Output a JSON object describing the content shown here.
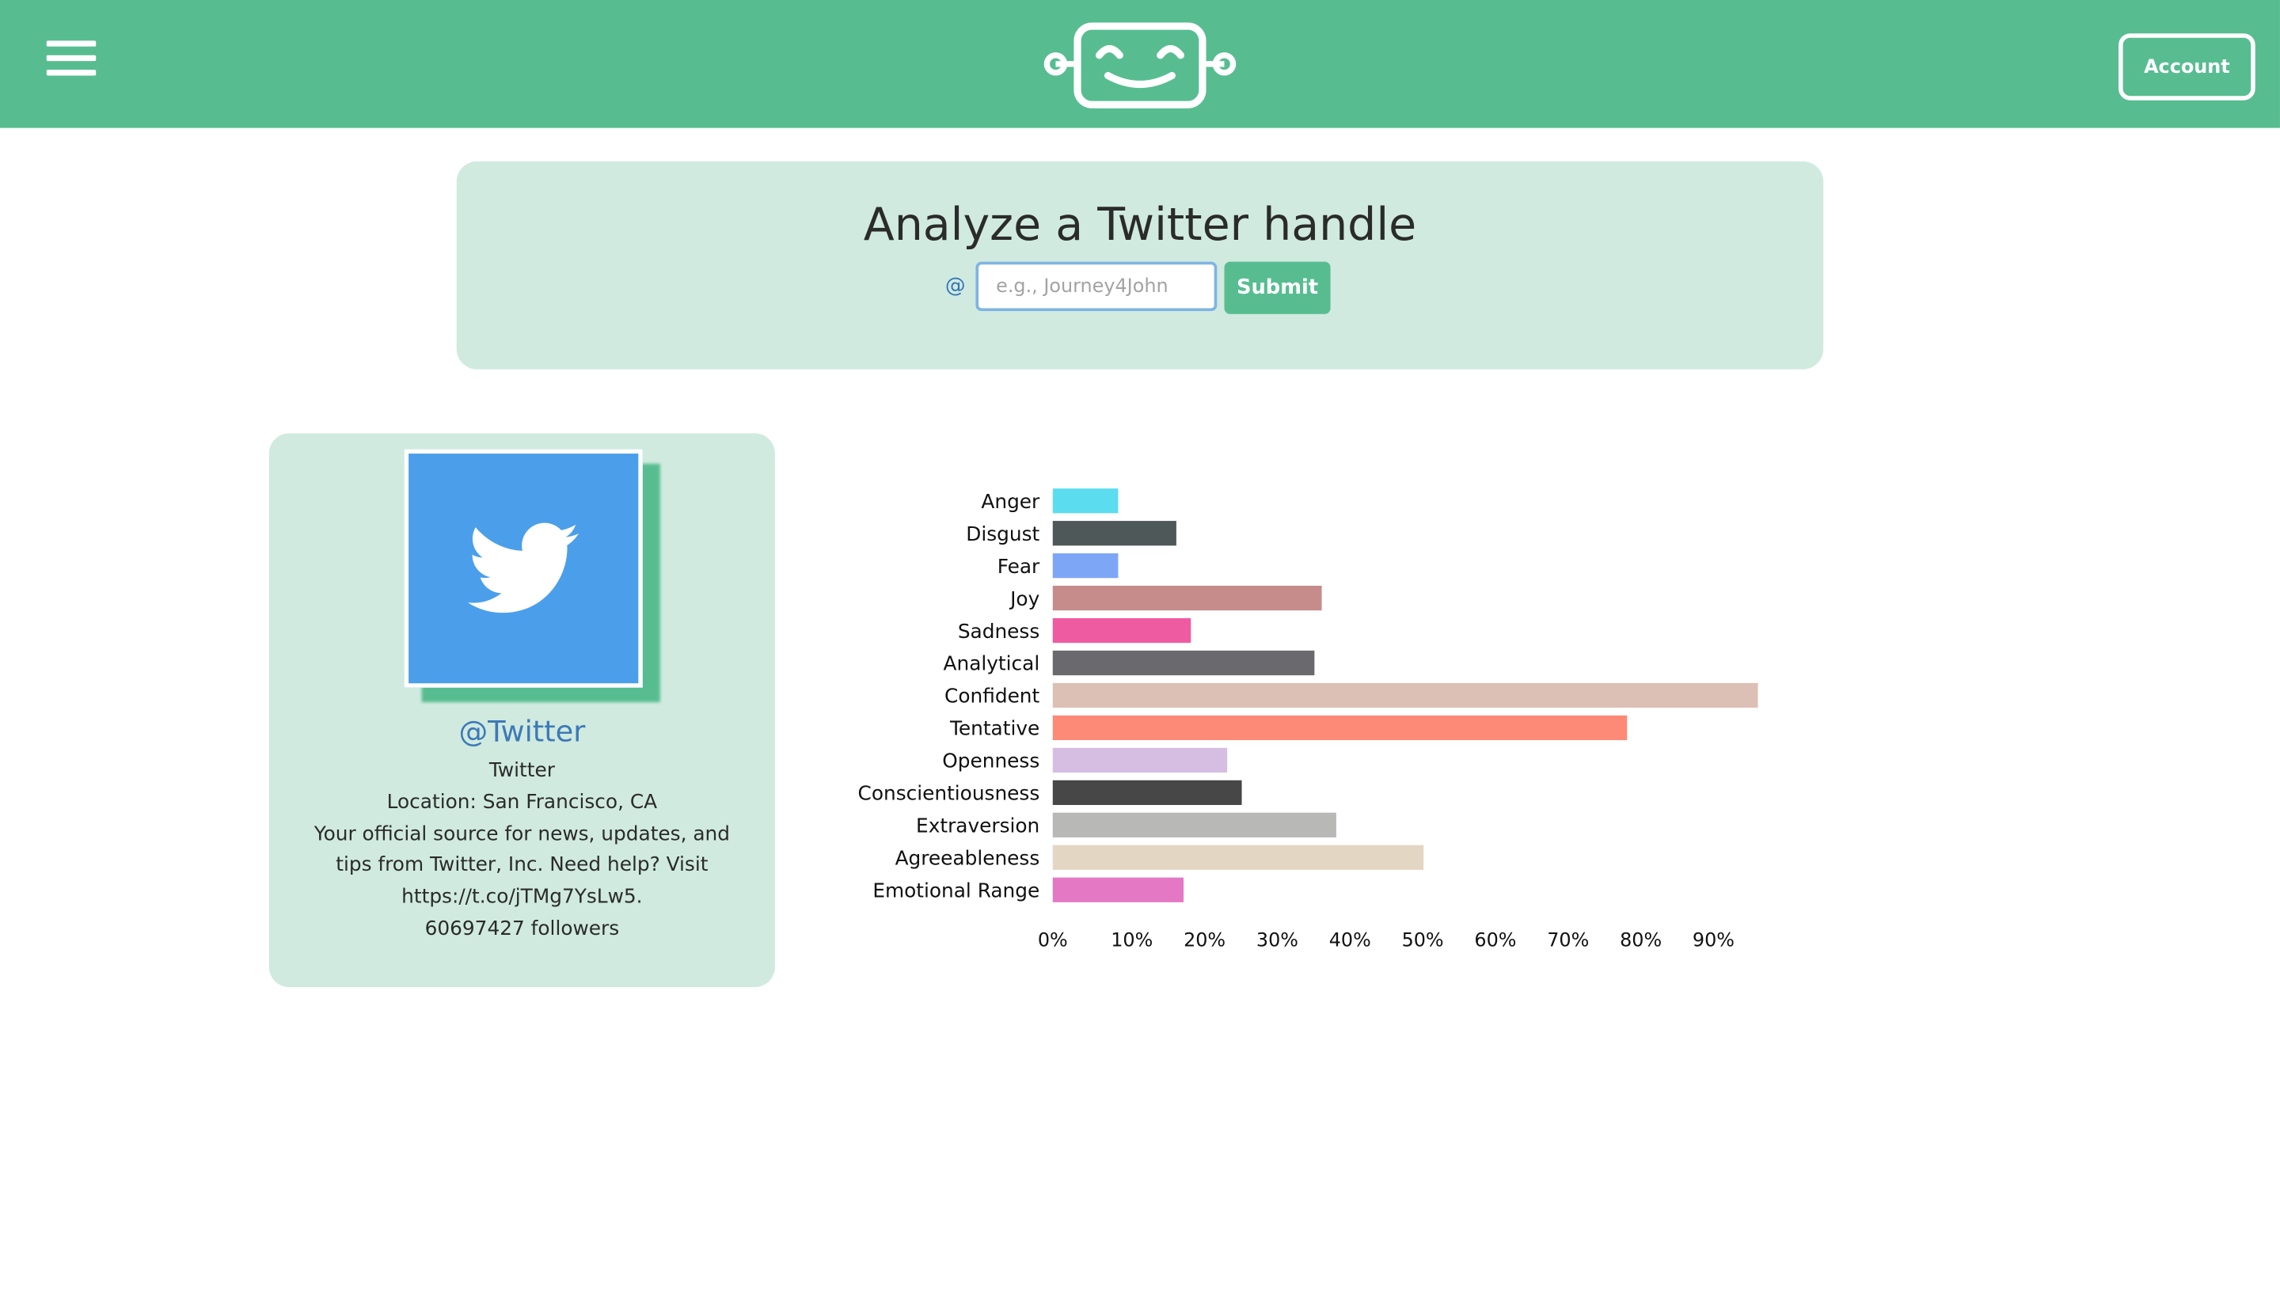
{
  "header": {
    "menu_icon": "hamburger-menu-icon",
    "logo_icon": "smiling-robot-logo",
    "account_label": "Account"
  },
  "search": {
    "title": "Analyze a Twitter handle",
    "at": "@",
    "placeholder": "e.g., Journey4John",
    "value": "",
    "submit_label": "Submit"
  },
  "profile": {
    "avatar_icon": "twitter-bird-icon",
    "handle": "@Twitter",
    "name": "Twitter",
    "location": "Location: San Francisco, CA",
    "bio": "Your official source for news, updates, and tips from Twitter, Inc. Need help? Visit https://t.co/jTMg7YsLw5.",
    "followers": "60697427 followers"
  },
  "chart_data": {
    "type": "bar",
    "orientation": "horizontal",
    "title": "",
    "xlabel": "",
    "ylabel": "",
    "xlim": [
      0,
      100
    ],
    "x_ticks": [
      "0%",
      "10%",
      "20%",
      "30%",
      "40%",
      "50%",
      "60%",
      "70%",
      "80%",
      "90%"
    ],
    "categories": [
      "Anger",
      "Disgust",
      "Fear",
      "Joy",
      "Sadness",
      "Analytical",
      "Confident",
      "Tentative",
      "Openness",
      "Conscientiousness",
      "Extraversion",
      "Agreeableness",
      "Emotional Range"
    ],
    "values": [
      9,
      17,
      9,
      37,
      19,
      36,
      97,
      79,
      24,
      26,
      39,
      51,
      18
    ],
    "colors": [
      "#5cdcef",
      "#4f5859",
      "#7ea6f7",
      "#c68b8b",
      "#ee5ba1",
      "#6a6a6e",
      "#dcc0b5",
      "#fd8a77",
      "#d5bee2",
      "#474747",
      "#b8b8b6",
      "#e3d6c3",
      "#e478c4"
    ],
    "grid": false,
    "legend": "none"
  }
}
